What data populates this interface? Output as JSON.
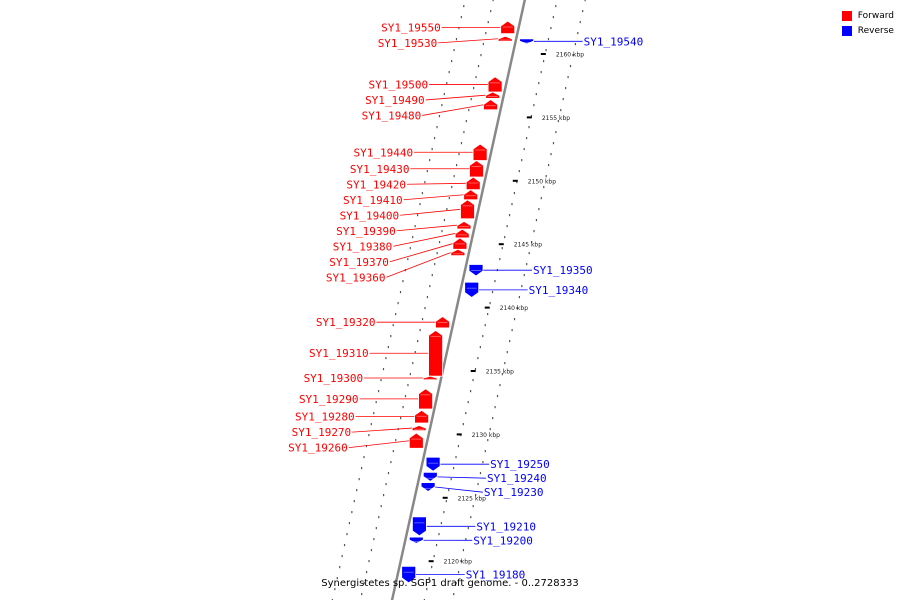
{
  "legend": {
    "forward": {
      "label": "Forward",
      "color": "#ff0000"
    },
    "reverse": {
      "label": "Reverse",
      "color": "#0000ff"
    }
  },
  "title": "Synergistetes sp. SGP1 draft genome. - 0..2728333",
  "ticks": [
    {
      "kbp": 2160,
      "label": "2160 kbp"
    },
    {
      "kbp": 2155,
      "label": "2155 kbp"
    },
    {
      "kbp": 2150,
      "label": "2150 kbp"
    },
    {
      "kbp": 2145,
      "label": "2145 kbp"
    },
    {
      "kbp": 2140,
      "label": "2140 kbp"
    },
    {
      "kbp": 2135,
      "label": "2135 kbp"
    },
    {
      "kbp": 2130,
      "label": "2130 kbp"
    },
    {
      "kbp": 2125,
      "label": "2125 kbp"
    },
    {
      "kbp": 2120,
      "label": "2120 kbp"
    }
  ],
  "genes": [
    {
      "name": "SY1_19550",
      "strand": "forward",
      "start_kbp": 2161.6,
      "end_kbp": 2162.6
    },
    {
      "name": "SY1_19530",
      "strand": "forward",
      "start_kbp": 2161.0,
      "end_kbp": 2161.4
    },
    {
      "name": "SY1_19540",
      "strand": "reverse",
      "start_kbp": 2160.8,
      "end_kbp": 2161.2
    },
    {
      "name": "SY1_19500",
      "strand": "forward",
      "start_kbp": 2157.0,
      "end_kbp": 2158.2
    },
    {
      "name": "SY1_19490",
      "strand": "forward",
      "start_kbp": 2156.5,
      "end_kbp": 2157.0
    },
    {
      "name": "SY1_19480",
      "strand": "forward",
      "start_kbp": 2155.6,
      "end_kbp": 2156.4
    },
    {
      "name": "SY1_19440",
      "strand": "forward",
      "start_kbp": 2151.6,
      "end_kbp": 2152.9
    },
    {
      "name": "SY1_19430",
      "strand": "forward",
      "start_kbp": 2150.3,
      "end_kbp": 2151.6
    },
    {
      "name": "SY1_19420",
      "strand": "forward",
      "start_kbp": 2149.3,
      "end_kbp": 2150.3
    },
    {
      "name": "SY1_19410",
      "strand": "forward",
      "start_kbp": 2148.5,
      "end_kbp": 2149.3
    },
    {
      "name": "SY1_19400",
      "strand": "forward",
      "start_kbp": 2147.0,
      "end_kbp": 2148.5
    },
    {
      "name": "SY1_19390",
      "strand": "forward",
      "start_kbp": 2146.2,
      "end_kbp": 2146.8
    },
    {
      "name": "SY1_19380",
      "strand": "forward",
      "start_kbp": 2145.5,
      "end_kbp": 2146.2
    },
    {
      "name": "SY1_19370",
      "strand": "forward",
      "start_kbp": 2144.6,
      "end_kbp": 2145.5
    },
    {
      "name": "SY1_19360",
      "strand": "forward",
      "start_kbp": 2144.1,
      "end_kbp": 2144.6
    },
    {
      "name": "SY1_19350",
      "strand": "reverse",
      "start_kbp": 2142.5,
      "end_kbp": 2143.4
    },
    {
      "name": "SY1_19340",
      "strand": "reverse",
      "start_kbp": 2140.8,
      "end_kbp": 2142.0
    },
    {
      "name": "SY1_19320",
      "strand": "forward",
      "start_kbp": 2138.4,
      "end_kbp": 2139.3
    },
    {
      "name": "SY1_19310",
      "strand": "forward",
      "start_kbp": 2134.6,
      "end_kbp": 2138.2
    },
    {
      "name": "SY1_19300",
      "strand": "forward",
      "start_kbp": 2134.3,
      "end_kbp": 2134.6
    },
    {
      "name": "SY1_19290",
      "strand": "forward",
      "start_kbp": 2132.0,
      "end_kbp": 2133.6
    },
    {
      "name": "SY1_19280",
      "strand": "forward",
      "start_kbp": 2130.9,
      "end_kbp": 2131.9
    },
    {
      "name": "SY1_19270",
      "strand": "forward",
      "start_kbp": 2130.3,
      "end_kbp": 2130.7
    },
    {
      "name": "SY1_19260",
      "strand": "forward",
      "start_kbp": 2128.9,
      "end_kbp": 2130.1
    },
    {
      "name": "SY1_19250",
      "strand": "reverse",
      "start_kbp": 2127.1,
      "end_kbp": 2128.2
    },
    {
      "name": "SY1_19240",
      "strand": "reverse",
      "start_kbp": 2126.3,
      "end_kbp": 2127.0
    },
    {
      "name": "SY1_19230",
      "strand": "reverse",
      "start_kbp": 2125.5,
      "end_kbp": 2126.2
    },
    {
      "name": "SY1_19210",
      "strand": "reverse",
      "start_kbp": 2122.0,
      "end_kbp": 2123.5
    },
    {
      "name": "SY1_19200",
      "strand": "reverse",
      "start_kbp": 2121.4,
      "end_kbp": 2121.9
    },
    {
      "name": "SY1_19180",
      "strand": "reverse",
      "start_kbp": 2118.3,
      "end_kbp": 2119.6
    }
  ]
}
